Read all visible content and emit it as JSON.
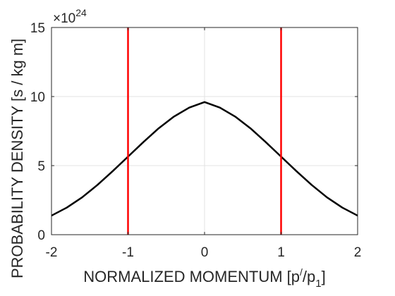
{
  "chart_data": {
    "type": "line",
    "xlabel_main": "NORMALIZED MOMENTUM  [p",
    "xlabel_prime": "/",
    "xlabel_p": "/p",
    "xlabel_sub": "1",
    "xlabel_close": "]",
    "ylabel": "PROBABILITY DENSITY  [s / kg m]",
    "multiplier_base": "10",
    "multiplier_exponent": "24",
    "multiplier_sign": "×",
    "xlim": [
      -2,
      2
    ],
    "ylim": [
      0,
      15
    ],
    "x_ticks": [
      "-2",
      "-1",
      "0",
      "1",
      "2"
    ],
    "y_ticks": [
      "0",
      "5",
      "10",
      "15"
    ],
    "x_tick_values": [
      -2,
      -1,
      0,
      1,
      2
    ],
    "y_tick_values": [
      0,
      5,
      10,
      15
    ],
    "grid": true,
    "y_scale_factor": 1e+24,
    "series": [
      {
        "color": "#000000",
        "x": [
          -2.0,
          -1.8,
          -1.6,
          -1.4,
          -1.2,
          -1.0,
          -0.8,
          -0.6,
          -0.4,
          -0.2,
          0.0,
          0.2,
          0.4,
          0.6,
          0.8,
          1.0,
          1.2,
          1.4,
          1.6,
          1.8,
          2.0
        ],
        "y": [
          1.38,
          1.96,
          2.7,
          3.6,
          4.6,
          5.65,
          6.7,
          7.7,
          8.55,
          9.2,
          9.6,
          9.2,
          8.55,
          7.7,
          6.7,
          5.65,
          4.6,
          3.6,
          2.7,
          1.96,
          1.38
        ]
      }
    ],
    "vertical_lines": [
      {
        "x": -1,
        "color": "#ff0000"
      },
      {
        "x": 1,
        "color": "#ff0000"
      }
    ]
  }
}
